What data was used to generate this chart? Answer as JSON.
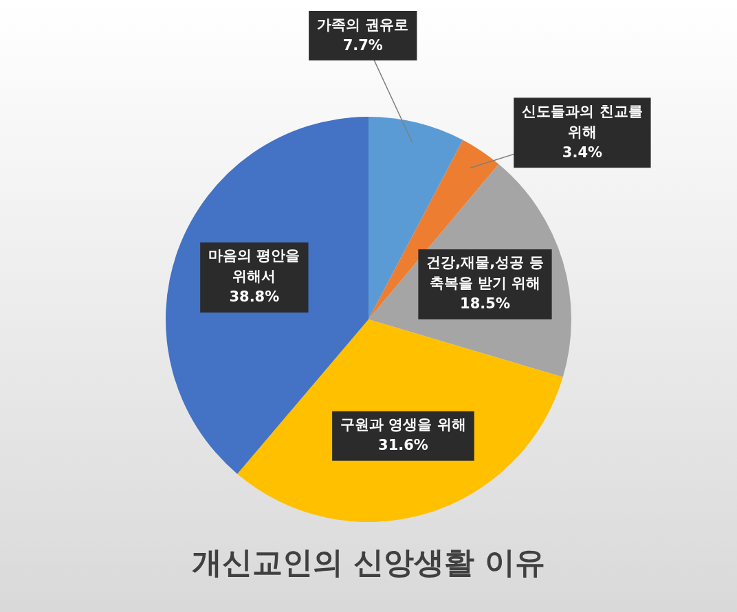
{
  "chart_data": {
    "type": "pie",
    "title": "개신교인의 신앙생활 이유",
    "categories": [
      "가족의 권유로",
      "신도들과의 친교를 위해",
      "건강,재물,성공 등 축복을 받기 위해",
      "구원과 영생을 위해",
      "마음의 평안을 위해서"
    ],
    "values": [
      7.7,
      3.4,
      18.5,
      31.6,
      38.8
    ],
    "colors": [
      "#5b9bd5",
      "#ed7d31",
      "#a5a5a5",
      "#ffc000",
      "#4472c4"
    ],
    "value_labels": [
      "7.7%",
      "3.4%",
      "18.5%",
      "31.6%",
      "38.8%"
    ],
    "legend": false
  }
}
